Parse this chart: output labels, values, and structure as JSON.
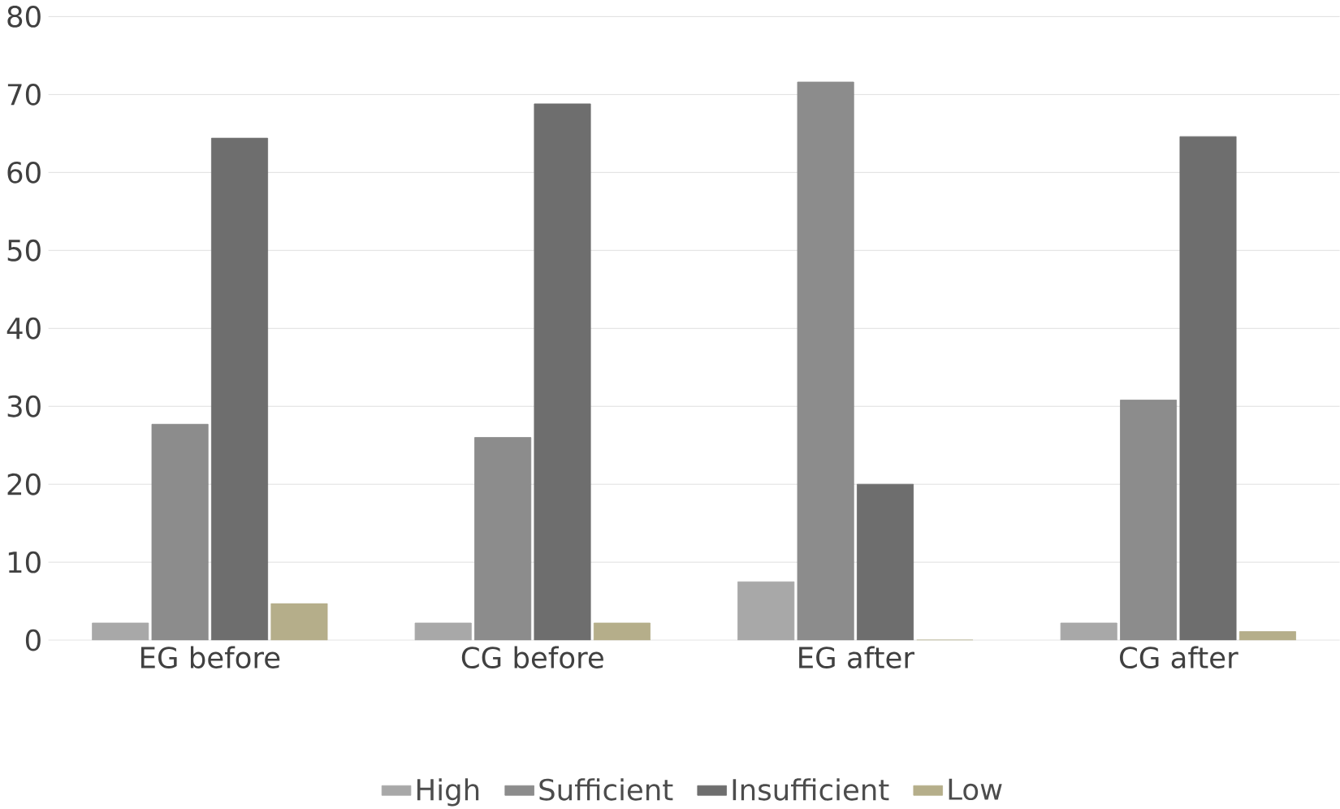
{
  "chart_data": {
    "type": "bar",
    "categories": [
      "EG before",
      "CG before",
      "EG after",
      "CG after"
    ],
    "series": [
      {
        "name": "High",
        "color": "#a8a8a8",
        "values": [
          2.2,
          2.2,
          7.5,
          2.2
        ]
      },
      {
        "name": "Sufficient",
        "color": "#8c8c8c",
        "values": [
          27.7,
          26,
          71.6,
          30.8
        ]
      },
      {
        "name": "Insufficient",
        "color": "#6e6e6e",
        "values": [
          64.4,
          68.8,
          20,
          64.6
        ]
      },
      {
        "name": "Low",
        "color": "#b5ae8a",
        "values": [
          4.7,
          2.2,
          0,
          1.1
        ]
      }
    ],
    "ylim": [
      0,
      80
    ],
    "yticks": [
      0,
      10,
      20,
      30,
      40,
      50,
      60,
      70,
      80
    ],
    "grid": "y",
    "legend": "bottom"
  }
}
